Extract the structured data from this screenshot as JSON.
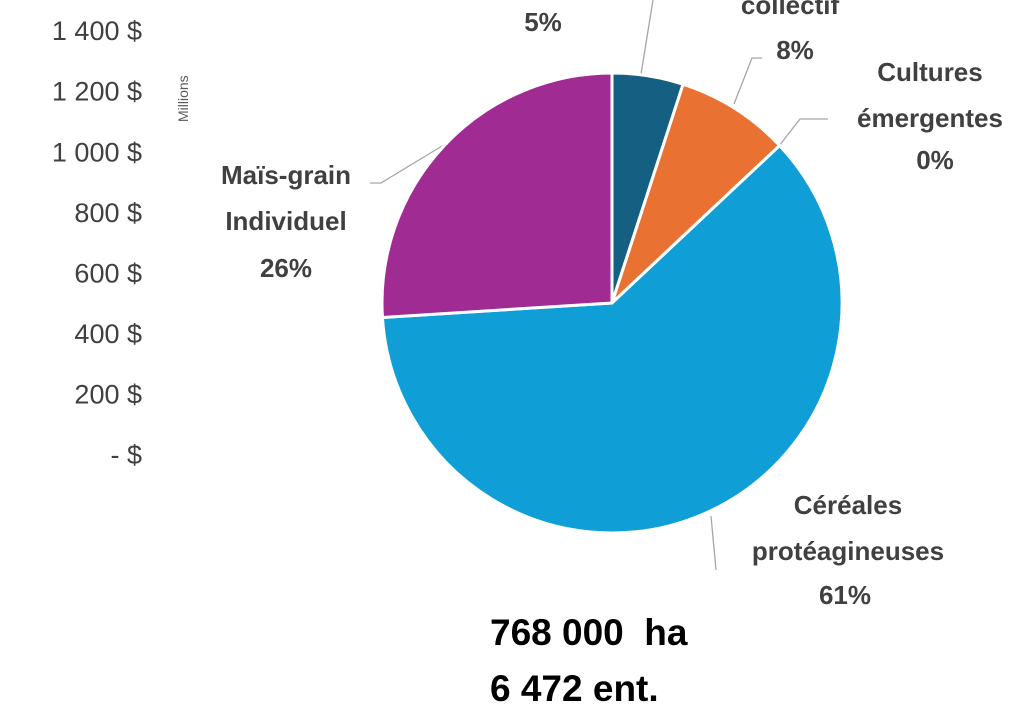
{
  "chart_data": [
    {
      "type": "axis",
      "y_label": "Millions",
      "ylim": [
        0,
        1400
      ],
      "yticks": [
        {
          "value": 0,
          "label": "-   $"
        },
        {
          "value": 200,
          "label": "200 $"
        },
        {
          "value": 400,
          "label": "400 $"
        },
        {
          "value": 600,
          "label": "600 $"
        },
        {
          "value": 800,
          "label": "800 $"
        },
        {
          "value": 1000,
          "label": "1 000 $"
        },
        {
          "value": 1200,
          "label": "1 200 $"
        },
        {
          "value": 1400,
          "label": "1 400 $"
        }
      ]
    },
    {
      "type": "pie",
      "categories": [
        null,
        "collectif",
        "Cultures émergentes",
        "Céréales protéagineuses",
        "Maïs-grain Individuel"
      ],
      "values": [
        5,
        8,
        0,
        61,
        26
      ],
      "value_labels": [
        "5%",
        "8%",
        "0%",
        "61%",
        "26%"
      ],
      "colors": [
        "#156082",
        "#e97132",
        "#196b24",
        "#0f9ed5",
        "#a02b93"
      ],
      "annotations": [
        "768 000  ha",
        "6 472 ent."
      ]
    }
  ]
}
